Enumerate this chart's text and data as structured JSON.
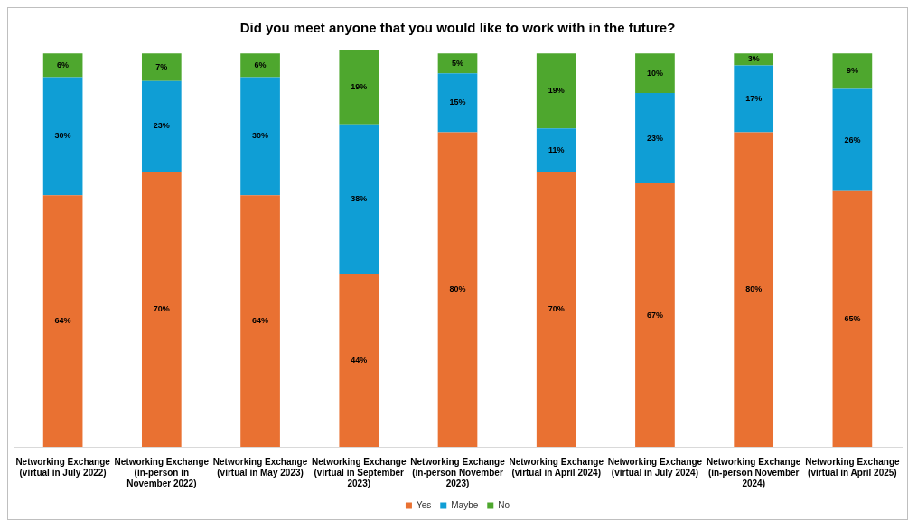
{
  "chart_data": {
    "type": "bar",
    "title": "Did you meet anyone that you would like to work with in the future?",
    "categories": [
      "Networking Exchange (virtual in July 2022)",
      "Networking Exchange (in-person in November 2022)",
      "Networking Exchange (virtual in May 2023)",
      "Networking Exchange (virtual in September 2023)",
      "Networking Exchange (in-person November 2023)",
      "Networking Exchange (virtual in April 2024)",
      "Networking Exchange (virtual in July 2024)",
      "Networking Exchange (in-person November 2024)",
      "Networking Exchange (virtual in April 2025)"
    ],
    "series": [
      {
        "name": "Yes",
        "color": "#e97132",
        "values": [
          64,
          70,
          64,
          44,
          80,
          70,
          67,
          80,
          65
        ],
        "value_labels": [
          "64%",
          "70%",
          "64%",
          "44%",
          "80%",
          "70%",
          "67%",
          "80%",
          "65%"
        ]
      },
      {
        "name": "Maybe",
        "color": "#0f9ed5",
        "values": [
          30,
          23,
          30,
          38,
          15,
          11,
          23,
          17,
          26
        ],
        "value_labels": [
          "30%",
          "23%",
          "30%",
          "38%",
          "15%",
          "11%",
          "23%",
          "17%",
          "26%"
        ]
      },
      {
        "name": "No",
        "color": "#4ea72e",
        "values": [
          6,
          7,
          6,
          19,
          5,
          19,
          10,
          3,
          9
        ],
        "value_labels": [
          "6%",
          "7%",
          "6%",
          "19%",
          "5%",
          "19%",
          "10%",
          "3%",
          "9%"
        ]
      }
    ],
    "stacked": true,
    "legend": "bottom"
  }
}
